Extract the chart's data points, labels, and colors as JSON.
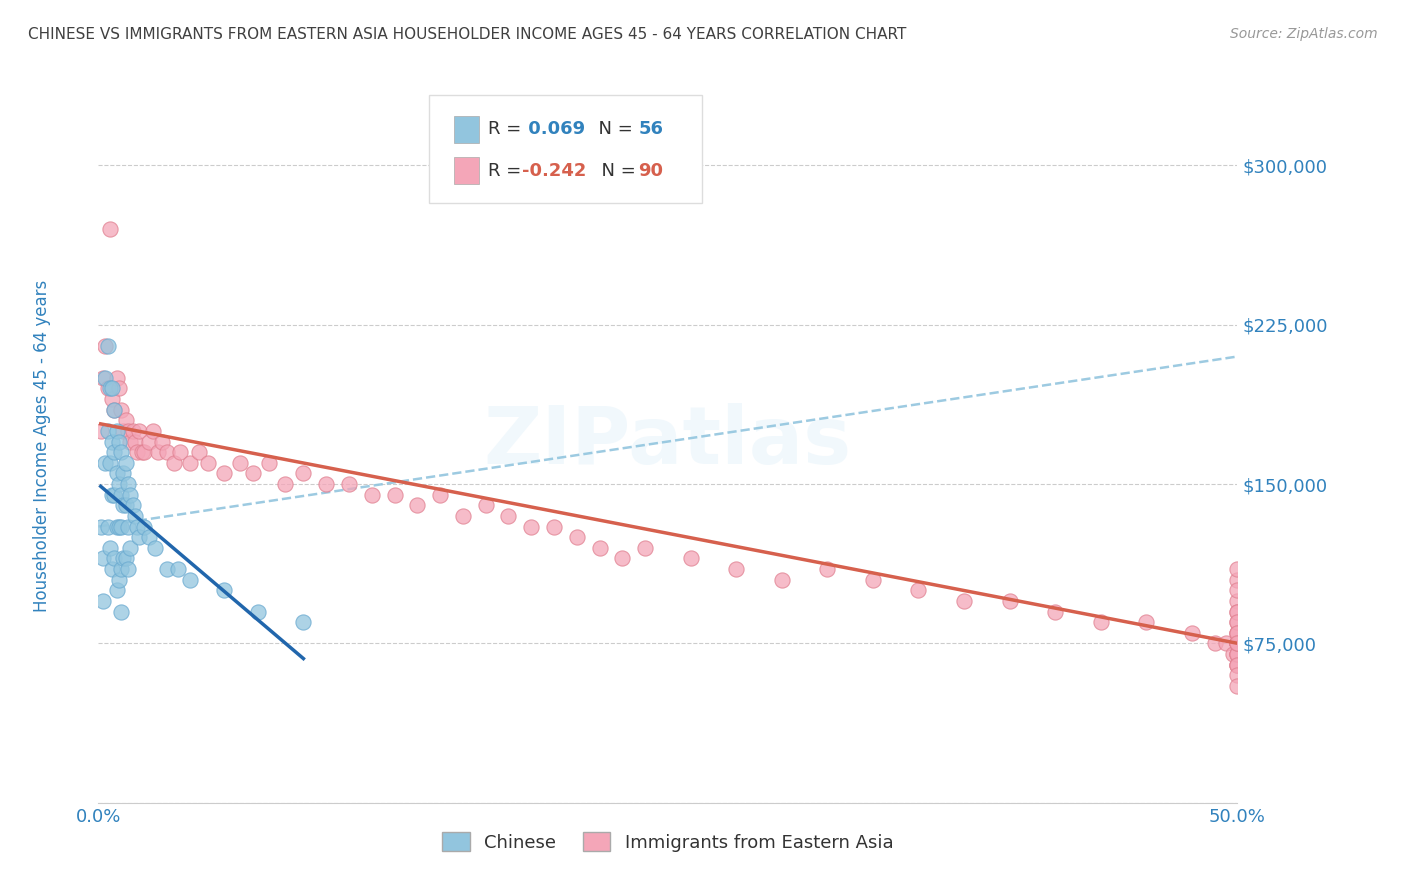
{
  "title": "CHINESE VS IMMIGRANTS FROM EASTERN ASIA HOUSEHOLDER INCOME AGES 45 - 64 YEARS CORRELATION CHART",
  "source": "Source: ZipAtlas.com",
  "ylabel": "Householder Income Ages 45 - 64 years",
  "xlim": [
    0.0,
    0.5
  ],
  "ylim": [
    0,
    340000
  ],
  "yticks": [
    0,
    75000,
    150000,
    225000,
    300000
  ],
  "ytick_labels": [
    "",
    "$75,000",
    "$150,000",
    "$225,000",
    "$300,000"
  ],
  "xticks": [
    0.0,
    0.05,
    0.1,
    0.15,
    0.2,
    0.25,
    0.3,
    0.35,
    0.4,
    0.45,
    0.5
  ],
  "xtick_labels": [
    "0.0%",
    "",
    "",
    "",
    "",
    "",
    "",
    "",
    "",
    "",
    "50.0%"
  ],
  "blue_color": "#92c5de",
  "pink_color": "#f4a6b8",
  "blue_line_color": "#2166ac",
  "pink_line_color": "#d6604d",
  "dashed_line_color": "#92c5de",
  "title_color": "#404040",
  "axis_label_color": "#3182bd",
  "tick_label_color": "#3182bd",
  "background_color": "#ffffff",
  "chinese_x": [
    0.001,
    0.002,
    0.002,
    0.003,
    0.003,
    0.004,
    0.004,
    0.004,
    0.005,
    0.005,
    0.005,
    0.006,
    0.006,
    0.006,
    0.006,
    0.007,
    0.007,
    0.007,
    0.007,
    0.008,
    0.008,
    0.008,
    0.008,
    0.009,
    0.009,
    0.009,
    0.009,
    0.01,
    0.01,
    0.01,
    0.01,
    0.01,
    0.011,
    0.011,
    0.011,
    0.012,
    0.012,
    0.012,
    0.013,
    0.013,
    0.013,
    0.014,
    0.014,
    0.015,
    0.016,
    0.017,
    0.018,
    0.02,
    0.022,
    0.025,
    0.03,
    0.035,
    0.04,
    0.055,
    0.07,
    0.09
  ],
  "chinese_y": [
    130000,
    115000,
    95000,
    200000,
    160000,
    215000,
    175000,
    130000,
    195000,
    160000,
    120000,
    195000,
    170000,
    145000,
    110000,
    185000,
    165000,
    145000,
    115000,
    175000,
    155000,
    130000,
    100000,
    170000,
    150000,
    130000,
    105000,
    165000,
    145000,
    130000,
    110000,
    90000,
    155000,
    140000,
    115000,
    160000,
    140000,
    115000,
    150000,
    130000,
    110000,
    145000,
    120000,
    140000,
    135000,
    130000,
    125000,
    130000,
    125000,
    120000,
    110000,
    110000,
    105000,
    100000,
    90000,
    85000
  ],
  "eastern_x": [
    0.001,
    0.002,
    0.003,
    0.004,
    0.005,
    0.006,
    0.007,
    0.008,
    0.009,
    0.01,
    0.011,
    0.012,
    0.013,
    0.014,
    0.015,
    0.016,
    0.017,
    0.018,
    0.019,
    0.02,
    0.022,
    0.024,
    0.026,
    0.028,
    0.03,
    0.033,
    0.036,
    0.04,
    0.044,
    0.048,
    0.055,
    0.062,
    0.068,
    0.075,
    0.082,
    0.09,
    0.1,
    0.11,
    0.12,
    0.13,
    0.14,
    0.15,
    0.16,
    0.17,
    0.18,
    0.19,
    0.2,
    0.21,
    0.22,
    0.23,
    0.24,
    0.26,
    0.28,
    0.3,
    0.32,
    0.34,
    0.36,
    0.38,
    0.4,
    0.42,
    0.44,
    0.46,
    0.48,
    0.49,
    0.495,
    0.498,
    0.5,
    0.5,
    0.5,
    0.5,
    0.5,
    0.5,
    0.5,
    0.5,
    0.5,
    0.5,
    0.5,
    0.5,
    0.5,
    0.5,
    0.5,
    0.5,
    0.5,
    0.5,
    0.5,
    0.5,
    0.5,
    0.5,
    0.5,
    0.5
  ],
  "eastern_y": [
    175000,
    200000,
    215000,
    195000,
    270000,
    190000,
    185000,
    200000,
    195000,
    185000,
    175000,
    180000,
    175000,
    170000,
    175000,
    170000,
    165000,
    175000,
    165000,
    165000,
    170000,
    175000,
    165000,
    170000,
    165000,
    160000,
    165000,
    160000,
    165000,
    160000,
    155000,
    160000,
    155000,
    160000,
    150000,
    155000,
    150000,
    150000,
    145000,
    145000,
    140000,
    145000,
    135000,
    140000,
    135000,
    130000,
    130000,
    125000,
    120000,
    115000,
    120000,
    115000,
    110000,
    105000,
    110000,
    105000,
    100000,
    95000,
    95000,
    90000,
    85000,
    85000,
    80000,
    75000,
    75000,
    70000,
    105000,
    95000,
    100000,
    110000,
    90000,
    85000,
    80000,
    75000,
    70000,
    65000,
    80000,
    75000,
    90000,
    85000,
    75000,
    70000,
    65000,
    70000,
    75000,
    80000,
    65000,
    60000,
    55000,
    75000
  ]
}
